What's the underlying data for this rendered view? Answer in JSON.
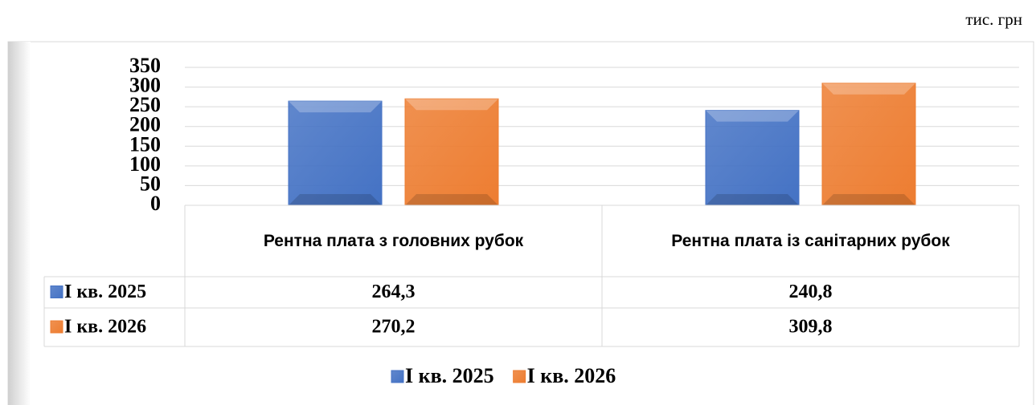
{
  "chart_data": {
    "type": "bar",
    "unit_label": "тис. грн",
    "categories": [
      "Рентна плата з головних рубок",
      "Рентна плата із санітарних рубок"
    ],
    "series": [
      {
        "name": "І кв. 2025",
        "color": "#4472c4",
        "values": [
          264.3,
          240.8
        ],
        "value_labels": [
          "264,3",
          "240,8"
        ]
      },
      {
        "name": "І кв. 2026",
        "color": "#ed7d31",
        "values": [
          270.2,
          309.8
        ],
        "value_labels": [
          "270,2",
          "309,8"
        ]
      }
    ],
    "ylim": [
      0,
      350
    ],
    "yticks": [
      0,
      50,
      100,
      150,
      200,
      250,
      300,
      350
    ],
    "grid": true,
    "legend": "bottom",
    "data_table": true
  }
}
